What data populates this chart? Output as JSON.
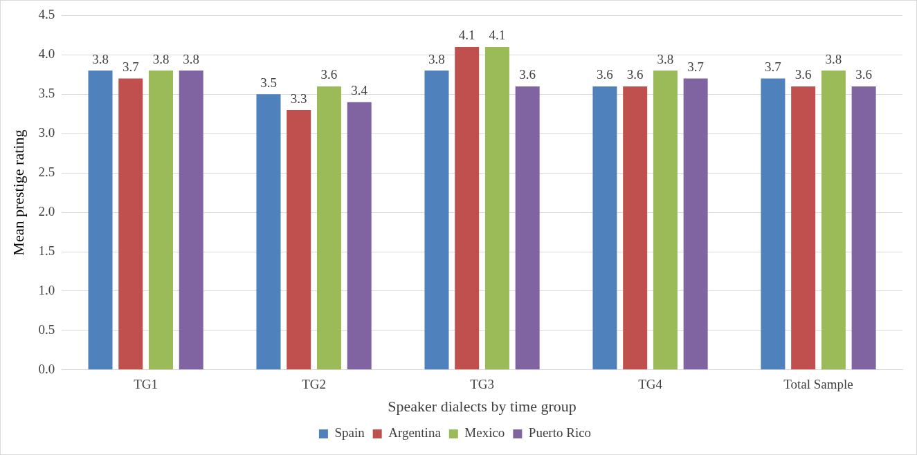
{
  "chart_data": {
    "type": "bar",
    "xlabel": "Speaker dialects by time group",
    "ylabel": "Mean prestige rating",
    "categories": [
      "TG1",
      "TG2",
      "TG3",
      "TG4",
      "Total Sample"
    ],
    "series": [
      {
        "name": "Spain",
        "color": "#4f81bd",
        "values": [
          3.8,
          3.5,
          3.8,
          3.6,
          3.7
        ]
      },
      {
        "name": "Argentina",
        "color": "#c0504d",
        "values": [
          3.7,
          3.3,
          4.1,
          3.6,
          3.6
        ]
      },
      {
        "name": "Mexico",
        "color": "#9bbb59",
        "values": [
          3.8,
          3.6,
          4.1,
          3.8,
          3.8
        ]
      },
      {
        "name": "Puerto Rico",
        "color": "#8064a2",
        "values": [
          3.8,
          3.4,
          3.6,
          3.7,
          3.6
        ]
      }
    ],
    "ylim": [
      0,
      4.5
    ],
    "yticks": [
      {
        "value": 0,
        "label": "0.0"
      },
      0.5,
      {
        "value": 1,
        "label": "1.0"
      },
      1.5,
      {
        "value": 2,
        "label": "2.0"
      },
      2.5,
      {
        "value": 3,
        "label": "3.0"
      },
      3.5,
      {
        "value": 4,
        "label": "4.0"
      },
      4.5
    ],
    "grid": "y",
    "legend": "bottom",
    "data_labels": true
  }
}
